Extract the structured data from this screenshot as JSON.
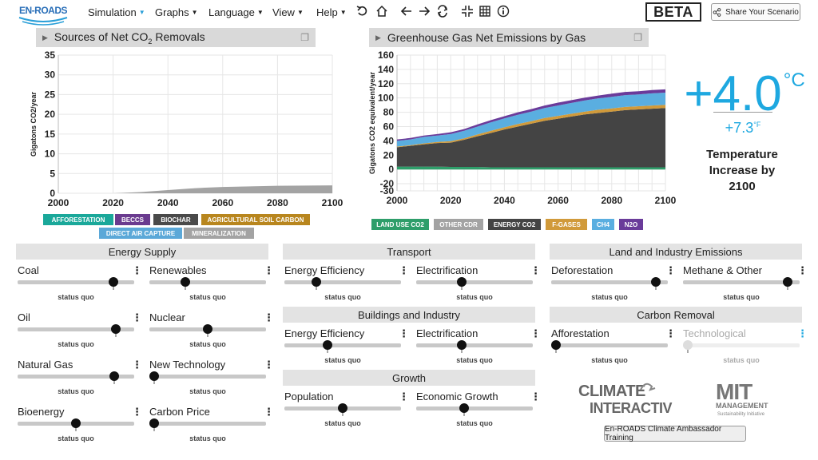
{
  "app": {
    "logo_text": "EN-ROADS",
    "beta_label": "BETA",
    "share_label": "Share Your Scenario",
    "training_label": "En-ROADS Climate Ambassador Training"
  },
  "menu": [
    {
      "label": "Simulation",
      "dot": true
    },
    {
      "label": "Graphs"
    },
    {
      "label": "Language"
    },
    {
      "label": "View"
    },
    {
      "label": "Help"
    }
  ],
  "toolbar_icons": [
    "undo-icon",
    "home-icon",
    "back-arrow-icon",
    "forward-arrow-icon",
    "refresh-icon",
    "compress-icon",
    "grid-icon",
    "info-icon"
  ],
  "graph_left": {
    "title": "Sources of Net CO",
    "title_sub": "2",
    "title_tail": " Removals"
  },
  "graph_right": {
    "title": "Greenhouse Gas Net Emissions by Gas"
  },
  "chart_data": [
    {
      "type": "area",
      "title": "Sources of Net CO2 Removals",
      "ylabel": "Gigatons CO2/year",
      "xlabel": "",
      "x": [
        2000,
        2020,
        2040,
        2060,
        2080,
        2100
      ],
      "xlim": [
        2000,
        2100
      ],
      "ylim": [
        0,
        35
      ],
      "yticks": [
        0,
        5,
        10,
        15,
        20,
        25,
        30,
        35
      ],
      "grid": true,
      "series": [
        {
          "name": "MINERALIZATION",
          "color": "#a3a3a3",
          "x": [
            2000,
            2020,
            2030,
            2040,
            2050,
            2060,
            2080,
            2100
          ],
          "values": [
            0,
            0,
            0.3,
            0.8,
            1.3,
            1.6,
            1.9,
            2.0
          ]
        }
      ],
      "legend": [
        {
          "label": "AFFORESTATION",
          "color": "#1aa89a"
        },
        {
          "label": "BECCS",
          "color": "#6a3b8f"
        },
        {
          "label": "BIOCHAR",
          "color": "#4a4a4a"
        },
        {
          "label": "AGRICULTURAL SOIL CARBON",
          "color": "#b8861e"
        },
        {
          "label": "DIRECT AIR CAPTURE",
          "color": "#5ba8d8"
        },
        {
          "label": "MINERALIZATION",
          "color": "#a3a3a3"
        }
      ],
      "legend_placement": "bottom"
    },
    {
      "type": "area",
      "title": "Greenhouse Gas Net Emissions by Gas",
      "ylabel": "Gigatons CO2 equivalent/year",
      "xlabel": "",
      "x": [
        2000,
        2005,
        2010,
        2015,
        2020,
        2025,
        2030,
        2035,
        2040,
        2045,
        2050,
        2055,
        2060,
        2065,
        2070,
        2075,
        2080,
        2085,
        2090,
        2095,
        2100
      ],
      "xlim": [
        2000,
        2100
      ],
      "ylim": [
        -30,
        160
      ],
      "yticks": [
        -30,
        -20,
        0,
        20,
        40,
        60,
        80,
        100,
        120,
        140,
        160
      ],
      "grid": true,
      "stacked": true,
      "series": [
        {
          "name": "LAND USE CO2",
          "color": "#2e9e6a",
          "values": [
            4,
            4,
            4,
            4,
            3.5,
            3.5,
            3.5,
            3,
            3,
            3,
            3,
            3,
            3,
            3,
            3,
            3,
            3,
            3,
            3,
            3,
            3
          ]
        },
        {
          "name": "ENERGY CO2",
          "color": "#444444",
          "values": [
            27,
            29,
            31,
            33,
            34,
            38,
            43,
            48,
            53,
            57,
            61,
            65,
            68,
            71,
            74,
            76,
            78,
            80,
            81,
            82,
            83
          ]
        },
        {
          "name": "F-GASES",
          "color": "#d19a3a",
          "values": [
            1,
            1,
            1.5,
            1.5,
            2,
            2,
            2.5,
            3,
            3,
            3.5,
            3.5,
            4,
            4,
            4,
            4,
            4.5,
            4.5,
            4.5,
            4.5,
            4.5,
            4.5
          ]
        },
        {
          "name": "CH4",
          "color": "#5aaee0",
          "values": [
            8,
            8,
            9,
            9,
            10,
            10.5,
            11,
            12,
            12.5,
            13,
            13.5,
            14,
            14.5,
            15,
            15.5,
            16,
            16,
            16.5,
            16.5,
            17,
            17
          ]
        },
        {
          "name": "N2O",
          "color": "#6a3b9a",
          "values": [
            2,
            2,
            2,
            2,
            2.5,
            2.5,
            3,
            3,
            3,
            3.5,
            3.5,
            3.5,
            4,
            4,
            4,
            4,
            4.5,
            4.5,
            4.5,
            4.5,
            4.5
          ]
        }
      ],
      "legend": [
        {
          "label": "LAND USE CO2",
          "color": "#2e9e6a"
        },
        {
          "label": "OTHER CDR",
          "color": "#a3a3a3"
        },
        {
          "label": "ENERGY CO2",
          "color": "#444444"
        },
        {
          "label": "F-GASES",
          "color": "#d19a3a"
        },
        {
          "label": "CH4",
          "color": "#5aaee0"
        },
        {
          "label": "N2O",
          "color": "#6a3b9a"
        }
      ],
      "legend_placement": "bottom"
    }
  ],
  "temperature": {
    "celsius": "+4.0",
    "c_unit": "°C",
    "fahrenheit": "+7.3",
    "f_unit": "°F",
    "label_line1": "Temperature",
    "label_line2": "Increase by",
    "label_line3": "2100"
  },
  "sections": {
    "energy_supply": "Energy Supply",
    "transport": "Transport",
    "land_industry": "Land and Industry Emissions",
    "buildings": "Buildings and Industry",
    "carbon_removal": "Carbon Removal",
    "growth": "Growth"
  },
  "status_label": "status quo",
  "sliders": [
    {
      "id": "coal",
      "label": "Coal",
      "value": 0.85
    },
    {
      "id": "renewables",
      "label": "Renewables",
      "value": 0.29
    },
    {
      "id": "oil",
      "label": "Oil",
      "value": 0.87
    },
    {
      "id": "nuclear",
      "label": "Nuclear",
      "value": 0.5
    },
    {
      "id": "natural-gas",
      "label": "Natural Gas",
      "value": 0.86
    },
    {
      "id": "new-technology",
      "label": "New Technology",
      "value": 0.0
    },
    {
      "id": "bioenergy",
      "label": "Bioenergy",
      "value": 0.5
    },
    {
      "id": "carbon-price",
      "label": "Carbon Price",
      "value": 0.0
    },
    {
      "id": "transport-efficiency",
      "label": "Energy Efficiency",
      "value": 0.25
    },
    {
      "id": "transport-electrification",
      "label": "Electrification",
      "value": 0.38
    },
    {
      "id": "buildings-efficiency",
      "label": "Energy Efficiency",
      "value": 0.36
    },
    {
      "id": "buildings-electrification",
      "label": "Electrification",
      "value": 0.38
    },
    {
      "id": "population",
      "label": "Population",
      "value": 0.5
    },
    {
      "id": "economic-growth",
      "label": "Economic Growth",
      "value": 0.4
    },
    {
      "id": "deforestation",
      "label": "Deforestation",
      "value": 0.93
    },
    {
      "id": "methane-other",
      "label": "Methane & Other",
      "value": 0.93
    },
    {
      "id": "afforestation",
      "label": "Afforestation",
      "value": 0.0
    },
    {
      "id": "technological",
      "label": "Technological",
      "value": 0.0,
      "disabled": true
    }
  ],
  "logos": {
    "ci_line1": "CLIMATE",
    "ci_line2": "INTERACTIVE",
    "mit_line1": "MIT",
    "mit_line2": "MANAGEMENT",
    "mit_line3": "Sustainability Initiative"
  }
}
